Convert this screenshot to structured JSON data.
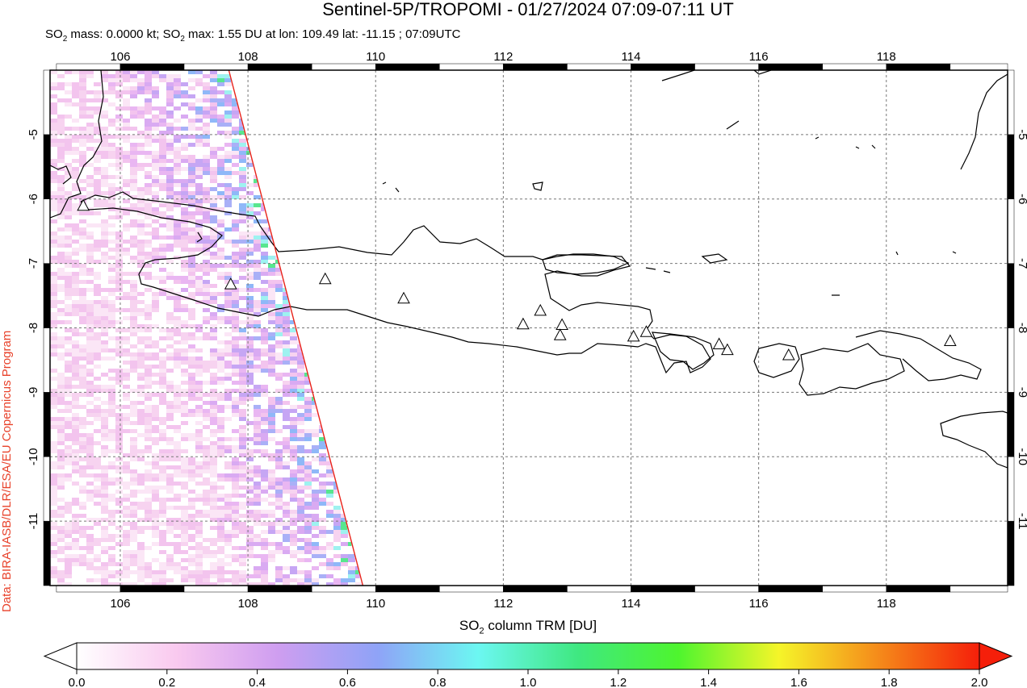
{
  "title": "Sentinel-5P/TROPOMI - 01/27/2024 07:09-07:11 UT",
  "subtitle": {
    "prefix": "SO",
    "sub1": "2",
    "mid": " mass: 0.0000 kt; SO",
    "sub2": "2",
    "suffix": " max: 1.55 DU at lon: 109.49 lat: -11.15 ; 07:09UTC"
  },
  "credit": "Data: BIRA-IASB/DLR/ESA/EU Copernicus Program",
  "map": {
    "lon_range": [
      104.9,
      119.9
    ],
    "lat_range": [
      -12.0,
      -4.0
    ],
    "lon_ticks": [
      "106",
      "108",
      "110",
      "112",
      "114",
      "116",
      "118"
    ],
    "lat_ticks": [
      "-5",
      "-6",
      "-7",
      "-8",
      "-9",
      "-10",
      "-11"
    ],
    "grid": "dashed",
    "swath_edge": [
      [
        107.7,
        -4.0
      ],
      [
        109.8,
        -12.0
      ]
    ],
    "volcanoes": [
      {
        "lon": 105.42,
        "lat": -6.1
      },
      {
        "lon": 107.73,
        "lat": -7.32
      },
      {
        "lon": 109.21,
        "lat": -7.24
      },
      {
        "lon": 110.44,
        "lat": -7.54
      },
      {
        "lon": 112.31,
        "lat": -7.94
      },
      {
        "lon": 112.58,
        "lat": -7.73
      },
      {
        "lon": 112.92,
        "lat": -7.95
      },
      {
        "lon": 112.89,
        "lat": -8.11
      },
      {
        "lon": 114.04,
        "lat": -8.13
      },
      {
        "lon": 114.24,
        "lat": -8.06
      },
      {
        "lon": 115.38,
        "lat": -8.25
      },
      {
        "lon": 115.51,
        "lat": -8.34
      },
      {
        "lon": 116.47,
        "lat": -8.42
      },
      {
        "lon": 119.0,
        "lat": -8.2
      }
    ]
  },
  "colorbar": {
    "label_main": "SO",
    "label_sub": "2",
    "label_rest": " column TRM [DU]",
    "ticks": [
      "0.0",
      "0.2",
      "0.4",
      "0.6",
      "0.8",
      "1.0",
      "1.2",
      "1.4",
      "1.6",
      "1.8",
      "2.0"
    ],
    "range": [
      0.0,
      2.0
    ],
    "colors": [
      "#ffffff",
      "#f9c9ef",
      "#cf9ef0",
      "#8fa3f7",
      "#6cf7f2",
      "#3fe880",
      "#4ef52e",
      "#f5f529",
      "#f58a1a",
      "#f51f0a"
    ]
  }
}
